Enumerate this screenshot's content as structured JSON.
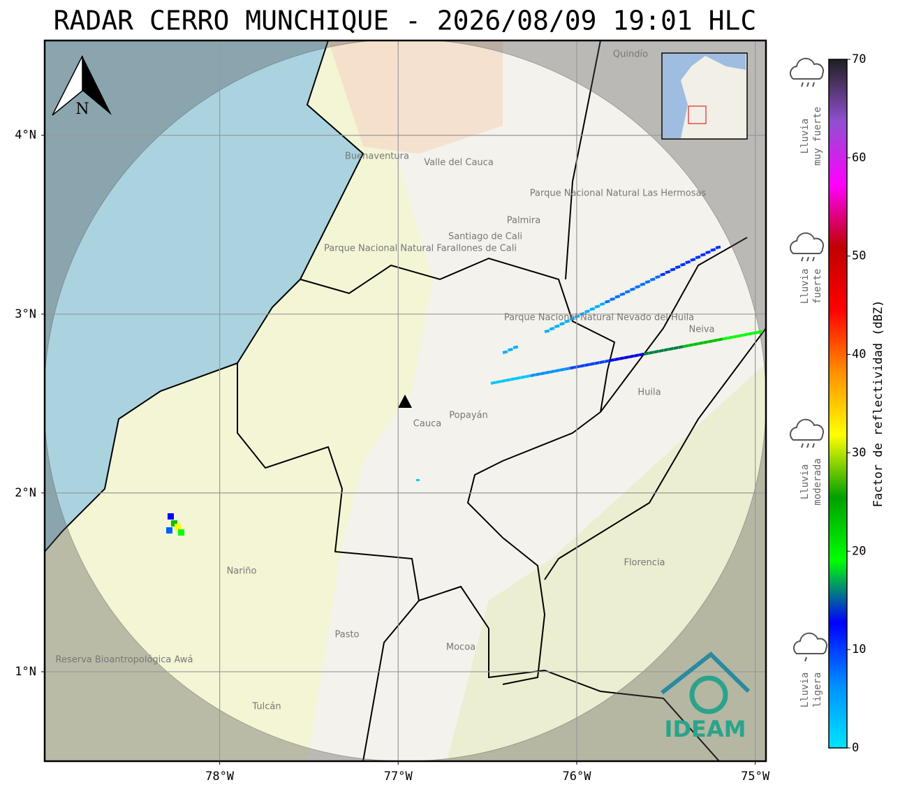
{
  "title": "RADAR CERRO MUNCHIQUE - 2026/08/09 19:01 HLC",
  "map": {
    "xlim": [
      -78.98,
      -74.94
    ],
    "ylim": [
      0.5,
      4.53
    ],
    "xticks": [
      {
        "value": -78,
        "label": "78°W"
      },
      {
        "value": -77,
        "label": "77°W"
      },
      {
        "value": -76,
        "label": "76°W"
      },
      {
        "value": -75,
        "label": "75°W"
      }
    ],
    "yticks": [
      {
        "value": 1,
        "label": "1°N"
      },
      {
        "value": 2,
        "label": "2°N"
      },
      {
        "value": 3,
        "label": "3°N"
      },
      {
        "value": 4,
        "label": "4°N"
      }
    ],
    "grid": true,
    "north": "N",
    "logo": "IDEAM",
    "places": [
      "Buenaventura",
      "Valle del Cauca",
      "Palmira",
      "Santiago de Cali",
      "Parque Nacional Natural Farallones de Cali",
      "Parque Nacional Natural Las Hermosas",
      "Parque Nacional Natural Nevado del Huila",
      "Neiva",
      "Huila",
      "Cauca",
      "Popayán",
      "Nariño",
      "Florencia",
      "Pasto",
      "Mocoa",
      "Reserva Bioantropológica Awá",
      "Tulcán",
      "Quindío"
    ]
  },
  "colorbar": {
    "label": "Factor de reflectividad (dBZ)",
    "ylim": [
      0,
      70
    ],
    "yticks": [
      0,
      10,
      20,
      30,
      40,
      50,
      60,
      70
    ],
    "colors": [
      "#00e5ff",
      "#0090ff",
      "#0000ff",
      "#00ff00",
      "#00a000",
      "#ffff00",
      "#ff9000",
      "#ff0000",
      "#c00000",
      "#ff00ff",
      "#9050d0",
      "#202020"
    ]
  },
  "rain_levels": [
    [
      "Lluvia",
      "muy fuerte"
    ],
    [
      "Lluvia",
      "fuerte"
    ],
    [
      "Lluvia",
      "moderada"
    ],
    [
      "Lluvia",
      "ligera"
    ]
  ]
}
